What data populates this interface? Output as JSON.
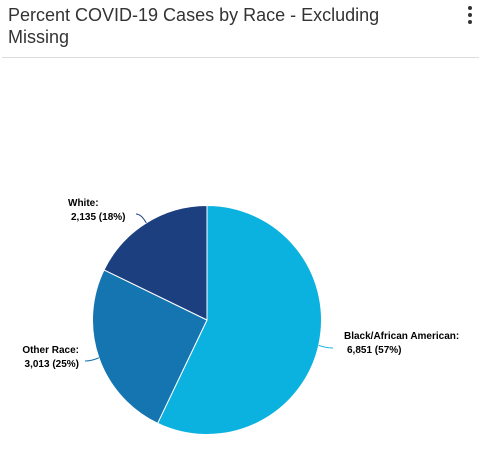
{
  "header": {
    "title_line1": "Percent COVID-19 Cases by Race - Excluding",
    "title_line2": "Missing",
    "menu_icon": "more-vert-icon"
  },
  "colors": {
    "black_african_american": "#0BB2E0",
    "other_race": "#1575B0",
    "white": "#1C3F80"
  },
  "chart_data": {
    "type": "pie",
    "title": "Percent COVID-19 Cases by Race - Excluding Missing",
    "categories": [
      "Black/African American",
      "Other Race",
      "White"
    ],
    "values": [
      6851,
      3013,
      2135
    ],
    "percents": [
      57,
      25,
      18
    ],
    "labels": [
      {
        "name": "Black/African American:",
        "value": "6,851 (57%)"
      },
      {
        "name": "Other Race:",
        "value": "3,013 (25%)"
      },
      {
        "name": "White:",
        "value": "2,135 (18%)"
      }
    ]
  }
}
